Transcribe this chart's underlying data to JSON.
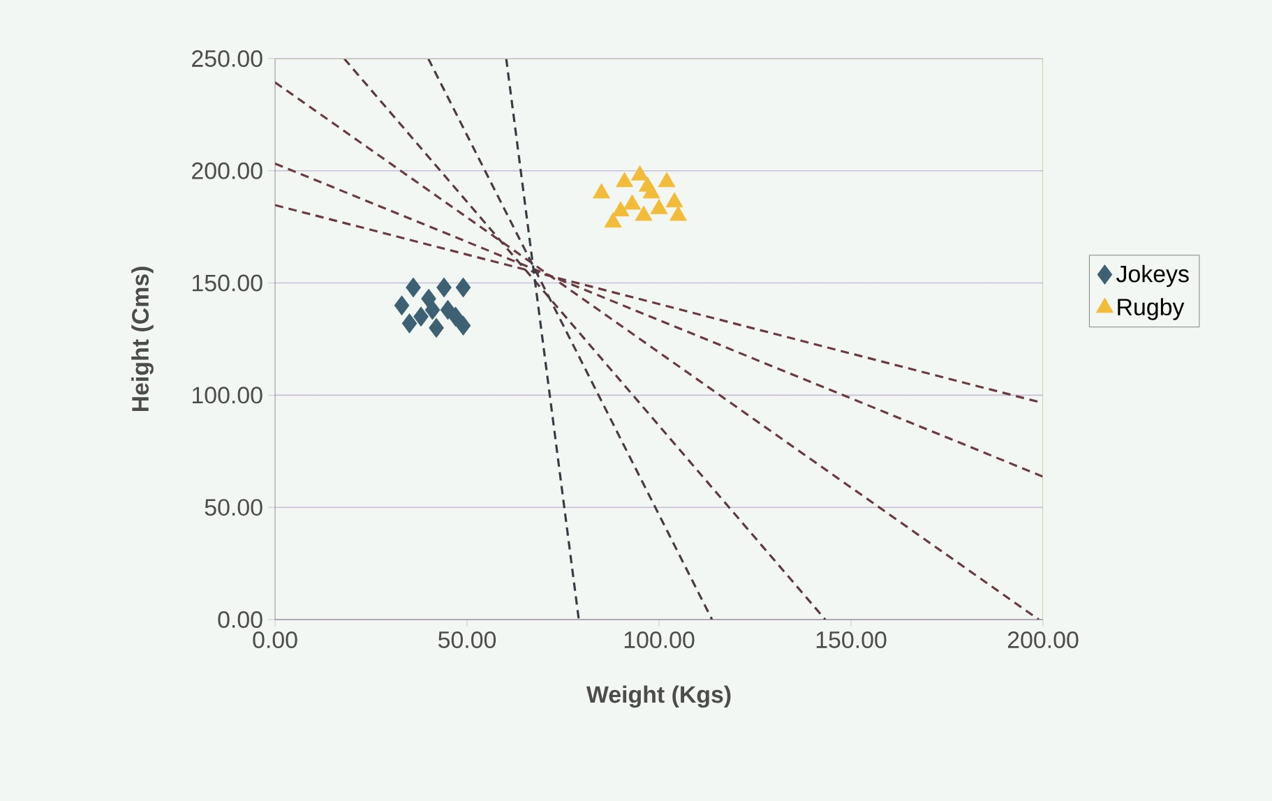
{
  "chart_data": {
    "type": "scatter",
    "xlabel": "Weight (Kgs)",
    "ylabel": "Height (Cms)",
    "xlim": [
      0,
      200
    ],
    "ylim": [
      0,
      250
    ],
    "xticks": [
      {
        "value": 0,
        "label": "0.00"
      },
      {
        "value": 50,
        "label": "50.00"
      },
      {
        "value": 100,
        "label": "100.00"
      },
      {
        "value": 150,
        "label": "150.00"
      },
      {
        "value": 200,
        "label": "200.00"
      }
    ],
    "yticks": [
      {
        "value": 0,
        "label": "0.00"
      },
      {
        "value": 50,
        "label": "50.00"
      },
      {
        "value": 100,
        "label": "100.00"
      },
      {
        "value": 150,
        "label": "150.00"
      },
      {
        "value": 200,
        "label": "200.00"
      },
      {
        "value": 250,
        "label": "250.00"
      }
    ],
    "grid": "y",
    "legend": "right",
    "series": [
      {
        "name": "Jokeys",
        "color": "#3d6072",
        "marker": "diamond",
        "x": [
          33,
          36,
          38,
          40,
          42,
          44,
          45,
          47,
          49,
          49,
          35,
          41
        ],
        "values": [
          140,
          148,
          135,
          143,
          130,
          148,
          138,
          135,
          148,
          131,
          132,
          138
        ]
      },
      {
        "name": "Rugby",
        "color": "#f2bc3a",
        "marker": "triangle",
        "x": [
          85,
          88,
          91,
          93,
          95,
          96,
          98,
          100,
          102,
          104,
          105,
          90,
          97
        ],
        "values": [
          190,
          177,
          195,
          185,
          198,
          180,
          190,
          183,
          195,
          186,
          180,
          182,
          193
        ]
      },
      {
        "type": "line",
        "color": "#6a3a40",
        "line_style": "dashed",
        "marker": "none",
        "x": [
          0,
          200
        ],
        "values": [
          184.7,
          96.5
        ]
      },
      {
        "type": "line",
        "color": "#6a3a40",
        "line_style": "dashed",
        "marker": "none",
        "x": [
          0,
          200
        ],
        "values": [
          203.2,
          63.7
        ]
      },
      {
        "type": "line",
        "color": "#6a3a40",
        "line_style": "dashed",
        "marker": "none",
        "x": [
          0,
          198.9
        ],
        "values": [
          239.4,
          0
        ]
      },
      {
        "type": "line",
        "color": "#5a3a40",
        "line_style": "dashed",
        "marker": "none",
        "x": [
          18,
          143.3
        ],
        "values": [
          250,
          0
        ]
      },
      {
        "type": "line",
        "color": "#4a3a44",
        "line_style": "dashed",
        "marker": "none",
        "x": [
          39.9,
          113.8
        ],
        "values": [
          250,
          0
        ]
      },
      {
        "type": "line",
        "color": "#3a3a44",
        "line_style": "dashed",
        "marker": "none",
        "x": [
          60.2,
          79.1
        ],
        "values": [
          250,
          0
        ]
      }
    ]
  }
}
